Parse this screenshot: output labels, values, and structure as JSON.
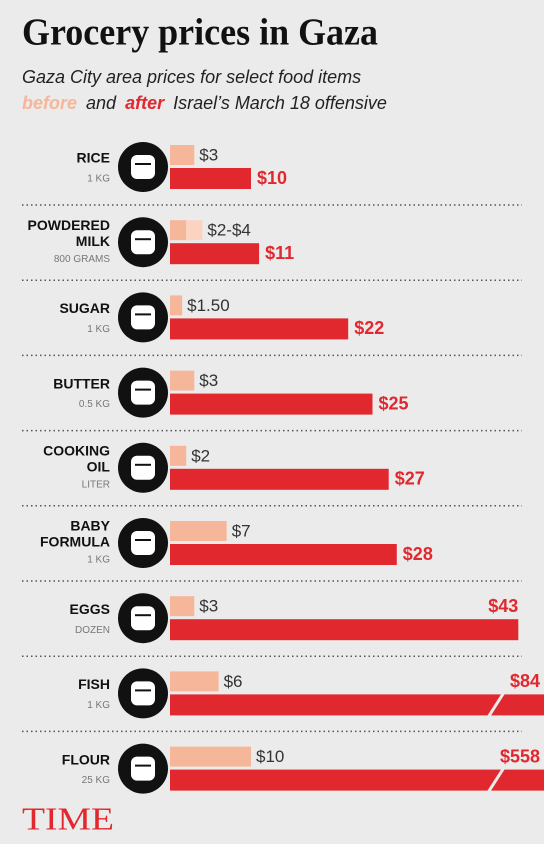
{
  "chart_data": {
    "type": "bar",
    "title": "Grocery prices in Gaza",
    "subtitle": "Gaza City area prices for select food items",
    "subtitle_line2": {
      "before": "before",
      "and": "and",
      "after": "after",
      "rest": "Israel’s March 18 offensive"
    },
    "categories": [
      [
        "RICE"
      ],
      [
        "POWDERED",
        "MILK"
      ],
      [
        "SUGAR"
      ],
      [
        "BUTTER"
      ],
      [
        "COOKING",
        "OIL"
      ],
      [
        "BABY",
        "FORMULA"
      ],
      [
        "EGGS"
      ],
      [
        "FISH"
      ],
      [
        "FLOUR"
      ]
    ],
    "units": [
      "1 KG",
      "800 GRAMS",
      "1 KG",
      "0.5 KG",
      "LITER",
      "1 KG",
      "DOZEN",
      "1 KG",
      "25 KG"
    ],
    "series": [
      {
        "name": "before",
        "color": "#f6b699",
        "range_color": "#fbd3c0",
        "values": [
          3,
          4,
          1.5,
          3,
          2,
          7,
          3,
          6,
          10
        ],
        "range_low": [
          null,
          2,
          null,
          null,
          null,
          null,
          null,
          null,
          null
        ],
        "value_labels": [
          "$3",
          "$2-$4",
          "$1.50",
          "$3",
          "$2",
          "$7",
          "$3",
          "$6",
          "$10"
        ]
      },
      {
        "name": "after",
        "color": "#e0282e",
        "values": [
          10,
          11,
          22,
          25,
          27,
          28,
          43,
          84,
          558
        ],
        "value_labels": [
          "$10",
          "$11",
          "$22",
          "$25",
          "$27",
          "$28",
          "$43",
          "$84",
          "$558"
        ]
      }
    ]
  },
  "footer": {
    "logo": "TIME"
  }
}
